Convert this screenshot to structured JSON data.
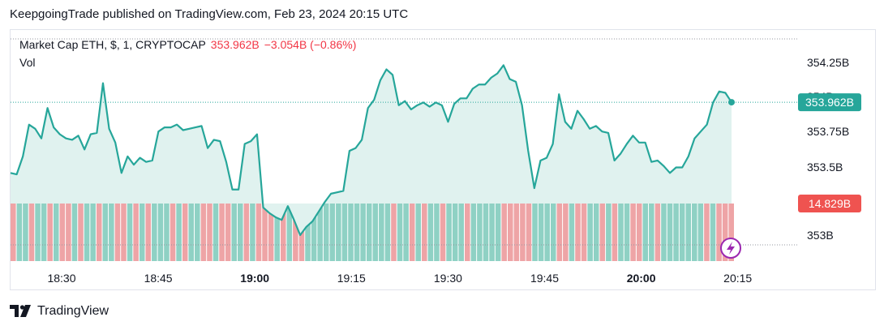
{
  "header": {
    "publisher_line": "KeepgoingTrade published on TradingView.com, Feb 23, 2024 20:15 UTC"
  },
  "legend": {
    "symbol": "Market Cap ETH, $, 1, CRYPTOCAP",
    "last": "353.962B",
    "change": "−3.054B (−0.86%)",
    "vol_label": "Vol"
  },
  "price_axis": {
    "ticks": [
      "354.25B",
      "354B",
      "353.75B",
      "353.5B",
      "353B"
    ],
    "last_price_tag": "353.962B",
    "volume_tag": "14.829B"
  },
  "time_axis": {
    "ticks": [
      "18:30",
      "18:45",
      "19:00",
      "19:15",
      "19:30",
      "19:45",
      "20:00",
      "20:15"
    ],
    "bold_ticks": [
      "19:00",
      "20:00"
    ]
  },
  "footer": {
    "brand": "TradingView",
    "logo_icon": "tradingview-logo-icon"
  },
  "colors": {
    "line": "#26a69a",
    "fill": "#e0f2ef",
    "vol_up": "#8fd1c4",
    "vol_down": "#eea4a6",
    "price_tag": "#26a69a",
    "volume_tag": "#ef5350",
    "down_text": "#f23645"
  },
  "chart_data": {
    "type": "area",
    "title": "Market Cap ETH, $, 1, CRYPTOCAP",
    "xlabel": "",
    "ylabel": "",
    "ylim": [
      352.98,
      354.4
    ],
    "grid": false,
    "x_range": [
      "18:22",
      "20:15"
    ],
    "series": [
      {
        "name": "Market Cap ETH",
        "values": [
          353.45,
          353.44,
          353.57,
          353.8,
          353.77,
          353.7,
          353.92,
          353.78,
          353.73,
          353.7,
          353.69,
          353.72,
          353.62,
          353.73,
          353.74,
          354.1,
          353.77,
          353.67,
          353.45,
          353.57,
          353.51,
          353.56,
          353.53,
          353.54,
          353.75,
          353.78,
          353.78,
          353.8,
          353.76,
          353.77,
          353.78,
          353.79,
          353.63,
          353.69,
          353.68,
          353.53,
          353.33,
          353.33,
          353.66,
          353.68,
          353.73,
          353.2,
          353.16,
          353.13,
          353.11,
          353.21,
          353.11,
          353.0,
          353.06,
          353.1,
          353.17,
          353.24,
          353.3,
          353.31,
          353.32,
          353.61,
          353.63,
          353.69,
          353.92,
          353.98,
          354.12,
          354.2,
          354.16,
          353.94,
          353.97,
          353.91,
          353.94,
          353.96,
          353.93,
          353.96,
          353.94,
          353.82,
          353.95,
          353.99,
          353.99,
          354.06,
          354.09,
          354.09,
          354.14,
          354.17,
          354.23,
          354.13,
          354.11,
          353.94,
          353.61,
          353.34,
          353.54,
          353.56,
          353.66,
          354.02,
          353.82,
          353.77,
          353.9,
          353.84,
          353.77,
          353.79,
          353.75,
          353.74,
          353.54,
          353.59,
          353.66,
          353.72,
          353.67,
          353.67,
          353.53,
          353.54,
          353.5,
          353.45,
          353.49,
          353.49,
          353.57,
          353.7,
          353.75,
          353.8,
          353.96,
          354.04,
          354.03,
          353.962
        ],
        "volume": [
          {
            "v": 1,
            "d": "down"
          },
          {
            "v": 1,
            "d": "up"
          },
          {
            "v": 1,
            "d": "up"
          },
          {
            "v": 1,
            "d": "down"
          },
          {
            "v": 1,
            "d": "up"
          },
          {
            "v": 1,
            "d": "up"
          },
          {
            "v": 1,
            "d": "down"
          },
          {
            "v": 1,
            "d": "up"
          },
          {
            "v": 1,
            "d": "down"
          },
          {
            "v": 1,
            "d": "down"
          },
          {
            "v": 1,
            "d": "up"
          },
          {
            "v": 1,
            "d": "down"
          },
          {
            "v": 1,
            "d": "up"
          },
          {
            "v": 1,
            "d": "up"
          },
          {
            "v": 1,
            "d": "down"
          },
          {
            "v": 1,
            "d": "up"
          },
          {
            "v": 1,
            "d": "up"
          },
          {
            "v": 1,
            "d": "down"
          },
          {
            "v": 1,
            "d": "down"
          },
          {
            "v": 1,
            "d": "up"
          },
          {
            "v": 1,
            "d": "down"
          },
          {
            "v": 1,
            "d": "up"
          },
          {
            "v": 1,
            "d": "down"
          },
          {
            "v": 1,
            "d": "up"
          },
          {
            "v": 1,
            "d": "up"
          },
          {
            "v": 1,
            "d": "up"
          },
          {
            "v": 1,
            "d": "down"
          },
          {
            "v": 1,
            "d": "up"
          },
          {
            "v": 1,
            "d": "down"
          },
          {
            "v": 1,
            "d": "up"
          },
          {
            "v": 1,
            "d": "up"
          },
          {
            "v": 1,
            "d": "down"
          },
          {
            "v": 1,
            "d": "down"
          },
          {
            "v": 1,
            "d": "up"
          },
          {
            "v": 1,
            "d": "down"
          },
          {
            "v": 1,
            "d": "down"
          },
          {
            "v": 1,
            "d": "up"
          },
          {
            "v": 1,
            "d": "up"
          },
          {
            "v": 1,
            "d": "down"
          },
          {
            "v": 1,
            "d": "up"
          },
          {
            "v": 1,
            "d": "down"
          },
          {
            "v": 1,
            "d": "down"
          },
          {
            "v": 1,
            "d": "down"
          },
          {
            "v": 1,
            "d": "up"
          },
          {
            "v": 1,
            "d": "down"
          },
          {
            "v": 1,
            "d": "up"
          },
          {
            "v": 1,
            "d": "down"
          },
          {
            "v": 1,
            "d": "down"
          },
          {
            "v": 1,
            "d": "up"
          },
          {
            "v": 1,
            "d": "up"
          },
          {
            "v": 1,
            "d": "up"
          },
          {
            "v": 1,
            "d": "up"
          },
          {
            "v": 1,
            "d": "up"
          },
          {
            "v": 1,
            "d": "up"
          },
          {
            "v": 1,
            "d": "up"
          },
          {
            "v": 1,
            "d": "up"
          },
          {
            "v": 1,
            "d": "up"
          },
          {
            "v": 1,
            "d": "up"
          },
          {
            "v": 1,
            "d": "up"
          },
          {
            "v": 1,
            "d": "up"
          },
          {
            "v": 1,
            "d": "up"
          },
          {
            "v": 1,
            "d": "up"
          },
          {
            "v": 1,
            "d": "down"
          },
          {
            "v": 1,
            "d": "up"
          },
          {
            "v": 1,
            "d": "up"
          },
          {
            "v": 1,
            "d": "down"
          },
          {
            "v": 1,
            "d": "up"
          },
          {
            "v": 1,
            "d": "down"
          },
          {
            "v": 1,
            "d": "up"
          },
          {
            "v": 1,
            "d": "up"
          },
          {
            "v": 1,
            "d": "down"
          },
          {
            "v": 1,
            "d": "up"
          },
          {
            "v": 1,
            "d": "up"
          },
          {
            "v": 1,
            "d": "up"
          },
          {
            "v": 1,
            "d": "down"
          },
          {
            "v": 1,
            "d": "up"
          },
          {
            "v": 1,
            "d": "up"
          },
          {
            "v": 1,
            "d": "up"
          },
          {
            "v": 1,
            "d": "up"
          },
          {
            "v": 1,
            "d": "up"
          },
          {
            "v": 1,
            "d": "down"
          },
          {
            "v": 1,
            "d": "down"
          },
          {
            "v": 1,
            "d": "down"
          },
          {
            "v": 1,
            "d": "down"
          },
          {
            "v": 1,
            "d": "down"
          },
          {
            "v": 1,
            "d": "up"
          },
          {
            "v": 1,
            "d": "up"
          },
          {
            "v": 1,
            "d": "up"
          },
          {
            "v": 1,
            "d": "up"
          },
          {
            "v": 1,
            "d": "down"
          },
          {
            "v": 1,
            "d": "down"
          },
          {
            "v": 1,
            "d": "up"
          },
          {
            "v": 1,
            "d": "down"
          },
          {
            "v": 1,
            "d": "down"
          },
          {
            "v": 1,
            "d": "up"
          },
          {
            "v": 1,
            "d": "up"
          },
          {
            "v": 1,
            "d": "down"
          },
          {
            "v": 1,
            "d": "up"
          },
          {
            "v": 1,
            "d": "down"
          },
          {
            "v": 1,
            "d": "up"
          },
          {
            "v": 1,
            "d": "up"
          },
          {
            "v": 1,
            "d": "down"
          },
          {
            "v": 1,
            "d": "down"
          },
          {
            "v": 1,
            "d": "up"
          },
          {
            "v": 1,
            "d": "up"
          },
          {
            "v": 1,
            "d": "down"
          },
          {
            "v": 1,
            "d": "up"
          },
          {
            "v": 1,
            "d": "up"
          },
          {
            "v": 1,
            "d": "up"
          },
          {
            "v": 1,
            "d": "up"
          },
          {
            "v": 1,
            "d": "up"
          },
          {
            "v": 1,
            "d": "up"
          },
          {
            "v": 1,
            "d": "up"
          },
          {
            "v": 1,
            "d": "down"
          },
          {
            "v": 1,
            "d": "up"
          },
          {
            "v": 1,
            "d": "down"
          },
          {
            "v": 1,
            "d": "down"
          },
          {
            "v": 1,
            "d": "down"
          }
        ]
      }
    ]
  }
}
